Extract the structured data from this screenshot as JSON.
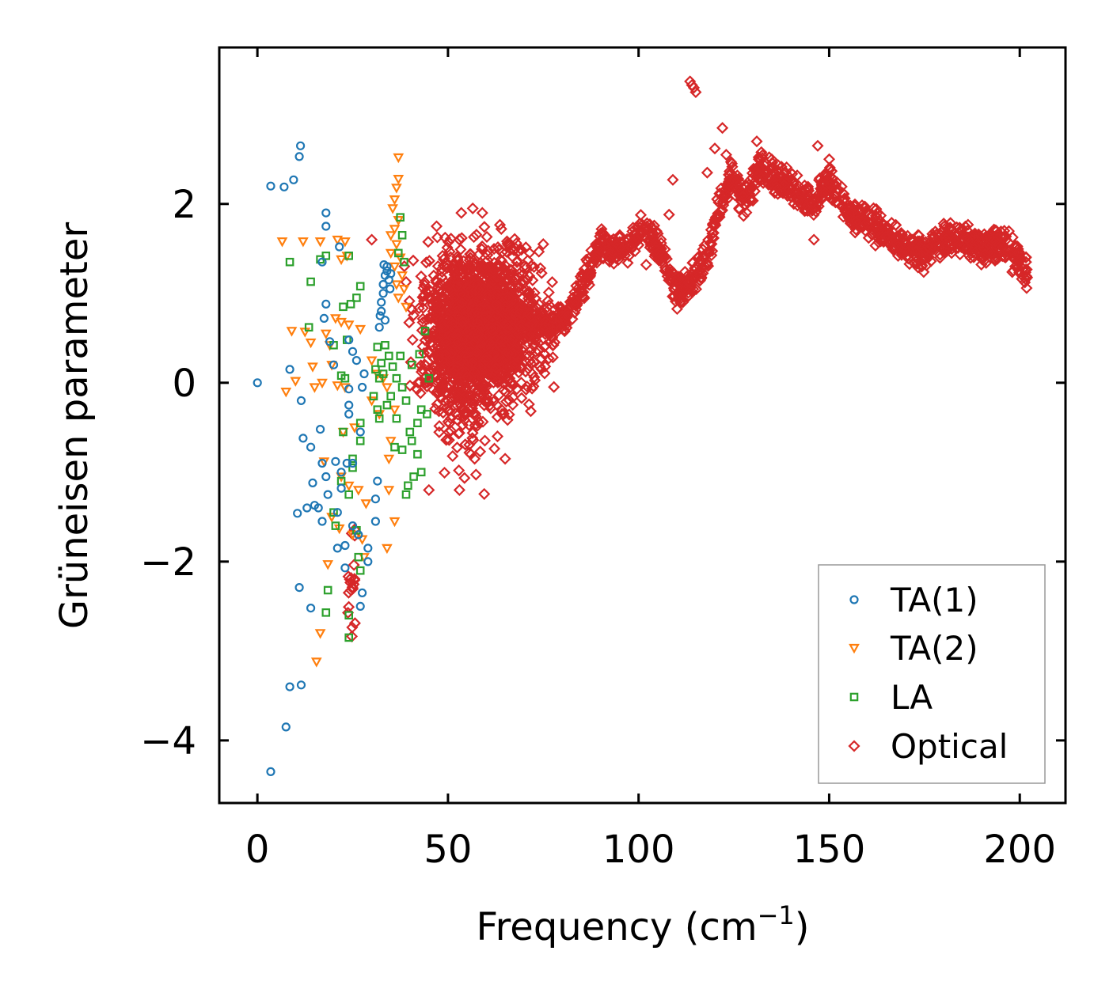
{
  "chart_data": {
    "type": "scatter",
    "xlabel": "Frequency (cm",
    "xlabel_sup": "−1",
    "xlabel_end": ")",
    "ylabel": "Grüneisen parameter",
    "xlim": [
      -10,
      212
    ],
    "ylim": [
      -4.7,
      3.75
    ],
    "xticks": [
      0,
      50,
      100,
      150,
      200
    ],
    "xtick_labels": [
      "0",
      "50",
      "100",
      "150",
      "200"
    ],
    "yticks": [
      -4,
      -2,
      0,
      2
    ],
    "ytick_labels": [
      "−4",
      "−2",
      "0",
      "2"
    ],
    "grid": false,
    "legend_position": "lower-right",
    "series": [
      {
        "name": "TA(1)",
        "marker": "circle",
        "color": "#1f77b4",
        "points": [
          [
            0,
            0
          ],
          [
            3.5,
            2.2
          ],
          [
            7,
            2.19
          ],
          [
            9.5,
            2.27
          ],
          [
            11,
            2.53
          ],
          [
            11.3,
            2.65
          ],
          [
            8.5,
            0.15
          ],
          [
            11.5,
            -0.2
          ],
          [
            12,
            -0.62
          ],
          [
            14,
            -0.72
          ],
          [
            14.5,
            -1.12
          ],
          [
            16.5,
            -0.52
          ],
          [
            17,
            -0.9
          ],
          [
            18,
            -1.05
          ],
          [
            16,
            -1.4
          ],
          [
            10.5,
            -1.46
          ],
          [
            13,
            -1.4
          ],
          [
            15,
            -1.37
          ],
          [
            18.5,
            -1.25
          ],
          [
            17,
            -1.55
          ],
          [
            21,
            -1.45
          ],
          [
            21,
            -1.85
          ],
          [
            23,
            -1.82
          ],
          [
            23,
            -2.07
          ],
          [
            25,
            -1.6
          ],
          [
            26.5,
            -1.7
          ],
          [
            29,
            -1.85
          ],
          [
            29,
            -2.0
          ],
          [
            27.5,
            -2.35
          ],
          [
            11,
            -2.29
          ],
          [
            14,
            -2.52
          ],
          [
            27,
            -2.5
          ],
          [
            8.5,
            -3.4
          ],
          [
            11.5,
            -3.38
          ],
          [
            7.5,
            -3.85
          ],
          [
            3.5,
            -4.35
          ],
          [
            18,
            1.9
          ],
          [
            18,
            1.75
          ],
          [
            17,
            1.35
          ],
          [
            18,
            0.88
          ],
          [
            17.5,
            0.72
          ],
          [
            21.5,
            1.52
          ],
          [
            19,
            0.46
          ],
          [
            20,
            0.2
          ],
          [
            24,
            0.48
          ],
          [
            25,
            0.35
          ],
          [
            26,
            0.25
          ],
          [
            24,
            -0.25
          ],
          [
            24,
            -0.35
          ],
          [
            23.5,
            -0.9
          ],
          [
            22,
            -1.0
          ],
          [
            20.5,
            -0.88
          ],
          [
            22,
            -1.18
          ],
          [
            25,
            -0.9
          ],
          [
            24,
            -0.07
          ],
          [
            27.5,
            -0.05
          ],
          [
            28,
            0.1
          ],
          [
            27,
            -0.55
          ],
          [
            31.5,
            -1.1
          ],
          [
            31,
            -1.3
          ],
          [
            31,
            -1.55
          ],
          [
            32,
            0.62
          ],
          [
            32.5,
            0.8
          ],
          [
            33,
            1.0
          ],
          [
            33.5,
            1.2
          ],
          [
            34,
            1.3
          ],
          [
            32.5,
            0.9
          ],
          [
            33,
            1.1
          ],
          [
            34,
            1.25
          ],
          [
            35,
            1.22
          ],
          [
            33.5,
            0.7
          ],
          [
            32.2,
            0.75
          ],
          [
            34.5,
            1.15
          ],
          [
            33.2,
            1.32
          ],
          [
            34.8,
            1.05
          ]
        ]
      },
      {
        "name": "TA(2)",
        "marker": "triangle-down",
        "color": "#ff7f0e",
        "points": [
          [
            6.5,
            1.58
          ],
          [
            12,
            1.58
          ],
          [
            16.5,
            1.58
          ],
          [
            21,
            1.6
          ],
          [
            23,
            1.58
          ],
          [
            22,
            1.38
          ],
          [
            23.5,
            1.42
          ],
          [
            9,
            0.58
          ],
          [
            12.5,
            0.57
          ],
          [
            14,
            0.45
          ],
          [
            18,
            0.55
          ],
          [
            19,
            0.42
          ],
          [
            20.5,
            0.72
          ],
          [
            22,
            0.68
          ],
          [
            24,
            0.65
          ],
          [
            27,
            0.6
          ],
          [
            7.5,
            -0.1
          ],
          [
            10,
            0.02
          ],
          [
            14.5,
            0.18
          ],
          [
            15,
            -0.05
          ],
          [
            17,
            0.0
          ],
          [
            19.5,
            0.2
          ],
          [
            21,
            -0.03
          ],
          [
            23,
            -0.05
          ],
          [
            22.5,
            -0.55
          ],
          [
            25.5,
            -0.5
          ],
          [
            17.5,
            -0.88
          ],
          [
            22,
            -1.05
          ],
          [
            24,
            -1.15
          ],
          [
            26.5,
            -1.2
          ],
          [
            28.5,
            -1.35
          ],
          [
            19.5,
            -1.5
          ],
          [
            21.5,
            -1.63
          ],
          [
            25,
            -1.7
          ],
          [
            27.5,
            -1.75
          ],
          [
            28,
            -1.95
          ],
          [
            18.5,
            -2.03
          ],
          [
            16.5,
            -2.8
          ],
          [
            15.5,
            -3.12
          ],
          [
            34,
            -1.85
          ],
          [
            36,
            -1.55
          ],
          [
            34.5,
            -1.2
          ],
          [
            35,
            -0.65
          ],
          [
            34.5,
            -0.85
          ],
          [
            36,
            -0.3
          ],
          [
            37,
            2.52
          ],
          [
            37,
            2.28
          ],
          [
            36.5,
            2.18
          ],
          [
            36,
            2.05
          ],
          [
            35.5,
            1.95
          ],
          [
            37,
            1.82
          ],
          [
            36,
            1.72
          ],
          [
            35,
            1.65
          ],
          [
            36.5,
            1.55
          ],
          [
            35,
            1.45
          ],
          [
            37.5,
            1.4
          ],
          [
            36,
            1.3
          ],
          [
            38,
            1.2
          ],
          [
            36.5,
            1.1
          ],
          [
            38.5,
            1.05
          ],
          [
            37,
            0.95
          ],
          [
            39,
            0.85
          ],
          [
            30,
            0.25
          ],
          [
            31.5,
            0.1
          ],
          [
            33,
            0.05
          ],
          [
            30,
            -0.2
          ],
          [
            32,
            -0.35
          ],
          [
            34,
            -0.05
          ]
        ]
      },
      {
        "name": "LA",
        "marker": "square",
        "color": "#2ca02c",
        "points": [
          [
            8.5,
            1.35
          ],
          [
            14,
            1.13
          ],
          [
            16.5,
            1.38
          ],
          [
            18,
            1.42
          ],
          [
            24,
            1.42
          ],
          [
            13.5,
            0.62
          ],
          [
            20,
            0.42
          ],
          [
            23.5,
            0.48
          ],
          [
            22.5,
            0.85
          ],
          [
            24.5,
            0.88
          ],
          [
            26,
            0.95
          ],
          [
            27,
            1.08
          ],
          [
            22,
            0.08
          ],
          [
            23,
            0.05
          ],
          [
            27,
            -0.45
          ],
          [
            27,
            -0.65
          ],
          [
            22.5,
            -0.55
          ],
          [
            25,
            -0.95
          ],
          [
            22,
            -1.1
          ],
          [
            24,
            -1.25
          ],
          [
            20,
            -1.45
          ],
          [
            20.5,
            -1.6
          ],
          [
            25,
            -0.85
          ],
          [
            26,
            -1.65
          ],
          [
            26.5,
            -1.95
          ],
          [
            27,
            -2.1
          ],
          [
            18.5,
            -2.32
          ],
          [
            18,
            -2.57
          ],
          [
            24,
            -2.6
          ],
          [
            24,
            -2.85
          ],
          [
            37.5,
            1.85
          ],
          [
            38,
            1.65
          ],
          [
            37,
            1.45
          ],
          [
            38.5,
            1.35
          ],
          [
            35,
            -0.15
          ],
          [
            36.5,
            0.05
          ],
          [
            37.5,
            0.3
          ],
          [
            38,
            -0.05
          ],
          [
            39,
            -0.2
          ],
          [
            40.5,
            0.2
          ],
          [
            40,
            -0.55
          ],
          [
            40.5,
            -0.65
          ],
          [
            42,
            -0.45
          ],
          [
            43,
            -0.3
          ],
          [
            42.5,
            0.32
          ],
          [
            44,
            0.58
          ],
          [
            45,
            0.05
          ],
          [
            44.5,
            -0.35
          ],
          [
            41,
            -1.05
          ],
          [
            43,
            -1.0
          ],
          [
            39.5,
            -1.15
          ],
          [
            39,
            -1.25
          ],
          [
            38,
            -0.75
          ],
          [
            42,
            -0.8
          ],
          [
            36,
            -0.72
          ],
          [
            31,
            0.15
          ],
          [
            31.5,
            0.4
          ],
          [
            32,
            0.05
          ],
          [
            32.5,
            0.22
          ],
          [
            33,
            0.1
          ],
          [
            31.5,
            -0.3
          ],
          [
            32,
            -0.4
          ],
          [
            33.5,
            0.42
          ],
          [
            34,
            -0.25
          ],
          [
            36.5,
            -0.4
          ],
          [
            30.5,
            -0.15
          ],
          [
            34.5,
            0.3
          ],
          [
            35.5,
            0.18
          ]
        ]
      },
      {
        "name": "Optical",
        "marker": "diamond",
        "color": "#d62728",
        "ranges": [
          {
            "x": [
              38,
              80
            ],
            "y": [
              -0.6,
              1.8
            ],
            "n": 1700,
            "seed": 11
          },
          {
            "x": [
              42,
              64
            ],
            "y": [
              -1.3,
              1.9
            ],
            "n": 250,
            "seed": 13
          },
          {
            "x": [
              23,
              27
            ],
            "y": [
              -3.2,
              -1.2
            ],
            "n": 20,
            "seed": 17
          }
        ],
        "trend": {
          "x": [
            70,
            78,
            84,
            90,
            96,
            102,
            106,
            110,
            114,
            118,
            120,
            124,
            128,
            132,
            136,
            140,
            146,
            150,
            156,
            162,
            168,
            175,
            182,
            190,
            196,
            202
          ],
          "y": [
            0.7,
            0.6,
            0.95,
            1.55,
            1.45,
            1.75,
            1.45,
            1.0,
            1.15,
            1.4,
            1.8,
            2.3,
            2.0,
            2.45,
            2.3,
            2.2,
            2.0,
            2.25,
            1.9,
            1.75,
            1.55,
            1.45,
            1.65,
            1.5,
            1.55,
            1.25
          ],
          "spread": 0.22,
          "n": 1300,
          "seed": 23
        },
        "points": [
          [
            113.5,
            3.37
          ],
          [
            114,
            3.33
          ],
          [
            114.5,
            3.3
          ],
          [
            115,
            3.25
          ],
          [
            122,
            2.85
          ],
          [
            120,
            2.62
          ],
          [
            118,
            2.35
          ],
          [
            109,
            2.27
          ],
          [
            108,
            1.88
          ],
          [
            123,
            2.55
          ],
          [
            131,
            2.7
          ],
          [
            147,
            2.65
          ],
          [
            150,
            2.5
          ],
          [
            146,
            1.6
          ],
          [
            102,
            1.32
          ],
          [
            84,
            1.05
          ],
          [
            56.5,
            1.95
          ],
          [
            59,
            1.9
          ],
          [
            53.5,
            1.9
          ],
          [
            30,
            1.6
          ],
          [
            47,
            1.75
          ],
          [
            64,
            1.72
          ],
          [
            75,
            1.55
          ],
          [
            65,
            -0.85
          ],
          [
            57,
            -0.85
          ],
          [
            53,
            -1.2
          ],
          [
            45,
            -1.2
          ],
          [
            56,
            -0.8
          ],
          [
            63,
            -0.6
          ],
          [
            58,
            0.78
          ],
          [
            60,
            0.25
          ]
        ]
      }
    ]
  }
}
